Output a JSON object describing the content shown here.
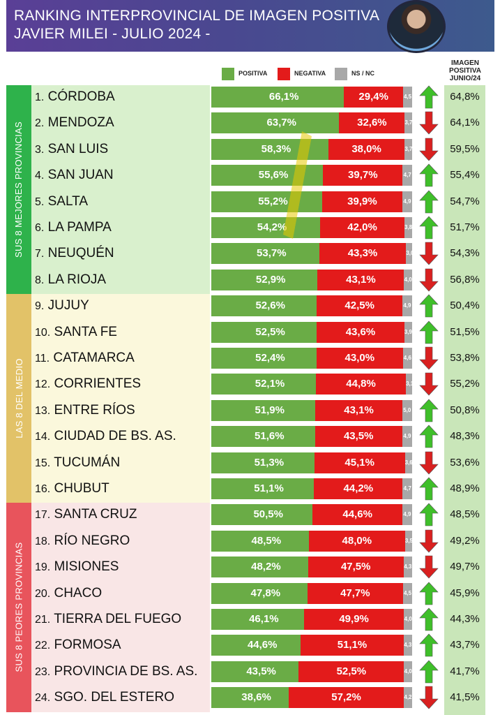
{
  "header": {
    "title_line1": "RANKING INTERPROVINCIAL DE IMAGEN POSITIVA",
    "title_line2": "JAVIER MILEI - JULIO  2024 -"
  },
  "legend": {
    "positiva": "POSITIVA",
    "negativa": "NEGATIVA",
    "nsnc": "NS / NC"
  },
  "june_header": [
    "IMAGEN",
    "POSITIVA",
    "JUNIO/24"
  ],
  "groups": [
    {
      "label": "SUS 8 MEJORES PROVINCIAS",
      "color": "#2eb24b",
      "bg": "#d9f0cd"
    },
    {
      "label": "LAS 8 DEL MEDIO",
      "color": "#e2c268",
      "bg": "#fbf8dc"
    },
    {
      "label": "SUS 8 PEORES PROVINCIAS",
      "color": "#e8545c",
      "bg": "#f9e6e6"
    }
  ],
  "colors": {
    "positiva": "#6aac46",
    "negativa": "#e31b1b",
    "nsnc": "#a8a8a8",
    "arrow_up": "#3fbf2a",
    "arrow_down": "#d92020"
  },
  "chart_data": {
    "type": "bar",
    "title": "RANKING INTERPROVINCIAL DE IMAGEN POSITIVA JAVIER MILEI - JULIO  2024 -",
    "categories": [
      "CÓRDOBA",
      "MENDOZA",
      "SAN LUIS",
      "SAN JUAN",
      "SALTA",
      "LA PAMPA",
      "NEUQUÉN",
      "LA RIOJA",
      "JUJUY",
      "SANTA FE",
      "CATAMARCA",
      "CORRIENTES",
      "ENTRE RÍOS",
      "CIUDAD DE BS. AS.",
      "TUCUMÁN",
      "CHUBUT",
      "SANTA CRUZ",
      "RÍO NEGRO",
      "MISIONES",
      "CHACO",
      "TIERRA DEL FUEGO",
      "FORMOSA",
      "PROVINCIA DE BS. AS.",
      "SGO. DEL ESTERO"
    ],
    "ranks": [
      "1.",
      "2.",
      "3.",
      "4.",
      "5.",
      "6.",
      "7.",
      "8.",
      "9.",
      "10.",
      "11.",
      "12.",
      "13.",
      "14.",
      "15.",
      "16.",
      "17.",
      "18.",
      "19.",
      "20.",
      "21.",
      "22.",
      "23.",
      "24."
    ],
    "series": [
      {
        "name": "POSITIVA",
        "values": [
          66.1,
          63.7,
          58.3,
          55.6,
          55.2,
          54.2,
          53.7,
          52.9,
          52.6,
          52.5,
          52.4,
          52.1,
          51.9,
          51.6,
          51.3,
          51.1,
          50.5,
          48.5,
          48.2,
          47.8,
          46.1,
          44.6,
          43.5,
          38.6
        ],
        "labels": [
          "66,1%",
          "63,7%",
          "58,3%",
          "55,6%",
          "55,2%",
          "54,2%",
          "53,7%",
          "52,9%",
          "52,6%",
          "52,5%",
          "52,4%",
          "52,1%",
          "51,9%",
          "51,6%",
          "51,3%",
          "51,1%",
          "50,5%",
          "48,5%",
          "48,2%",
          "47,8%",
          "46,1%",
          "44,6%",
          "43,5%",
          "38,6%"
        ]
      },
      {
        "name": "NEGATIVA",
        "values": [
          29.4,
          32.6,
          38.0,
          39.7,
          39.9,
          42.0,
          43.3,
          43.1,
          42.5,
          43.6,
          43.0,
          44.8,
          43.1,
          43.5,
          45.1,
          44.2,
          44.6,
          48.0,
          47.5,
          47.7,
          49.9,
          51.1,
          52.5,
          57.2
        ],
        "labels": [
          "29,4%",
          "32,6%",
          "38,0%",
          "39,7%",
          "39,9%",
          "42,0%",
          "43,3%",
          "43,1%",
          "42,5%",
          "43,6%",
          "43,0%",
          "44,8%",
          "43,1%",
          "43,5%",
          "45,1%",
          "44,2%",
          "44,6%",
          "48,0%",
          "47,5%",
          "47,7%",
          "49,9%",
          "51,1%",
          "52,5%",
          "57,2%"
        ]
      },
      {
        "name": "NS / NC",
        "values": [
          4.5,
          3.7,
          3.7,
          4.7,
          4.9,
          3.8,
          3.0,
          4.0,
          4.9,
          3.9,
          4.6,
          3.1,
          5.0,
          4.9,
          3.6,
          4.7,
          4.9,
          3.5,
          4.3,
          4.5,
          4.0,
          4.3,
          4.0,
          4.2
        ],
        "labels": [
          "4,5",
          "3,7",
          "3,7",
          "4,7",
          "4,9",
          "3,8",
          "3,0",
          "4,0",
          "4,9",
          "3,9",
          "4,6",
          "3,1",
          "5,0",
          "4,9",
          "3,6",
          "4,7",
          "4,9",
          "3,5",
          "4,3",
          "4,5",
          "4,0",
          "4,3",
          "4,0",
          "4,2"
        ]
      }
    ],
    "trend": [
      "up",
      "down",
      "down",
      "up",
      "up",
      "up",
      "down",
      "down",
      "up",
      "up",
      "down",
      "down",
      "up",
      "up",
      "down",
      "up",
      "up",
      "down",
      "down",
      "up",
      "up",
      "up",
      "up",
      "down"
    ],
    "june_values": [
      "64,8%",
      "64,1%",
      "59,5%",
      "55,4%",
      "54,7%",
      "51,7%",
      "54,3%",
      "56,8%",
      "50,4%",
      "51,5%",
      "53,8%",
      "55,2%",
      "50,8%",
      "48,3%",
      "53,6%",
      "48,9%",
      "48,5%",
      "49,2%",
      "49,7%",
      "45,9%",
      "44,3%",
      "43,7%",
      "41,7%",
      "41,5%"
    ],
    "xlim": [
      0,
      100
    ],
    "legend": "top"
  }
}
